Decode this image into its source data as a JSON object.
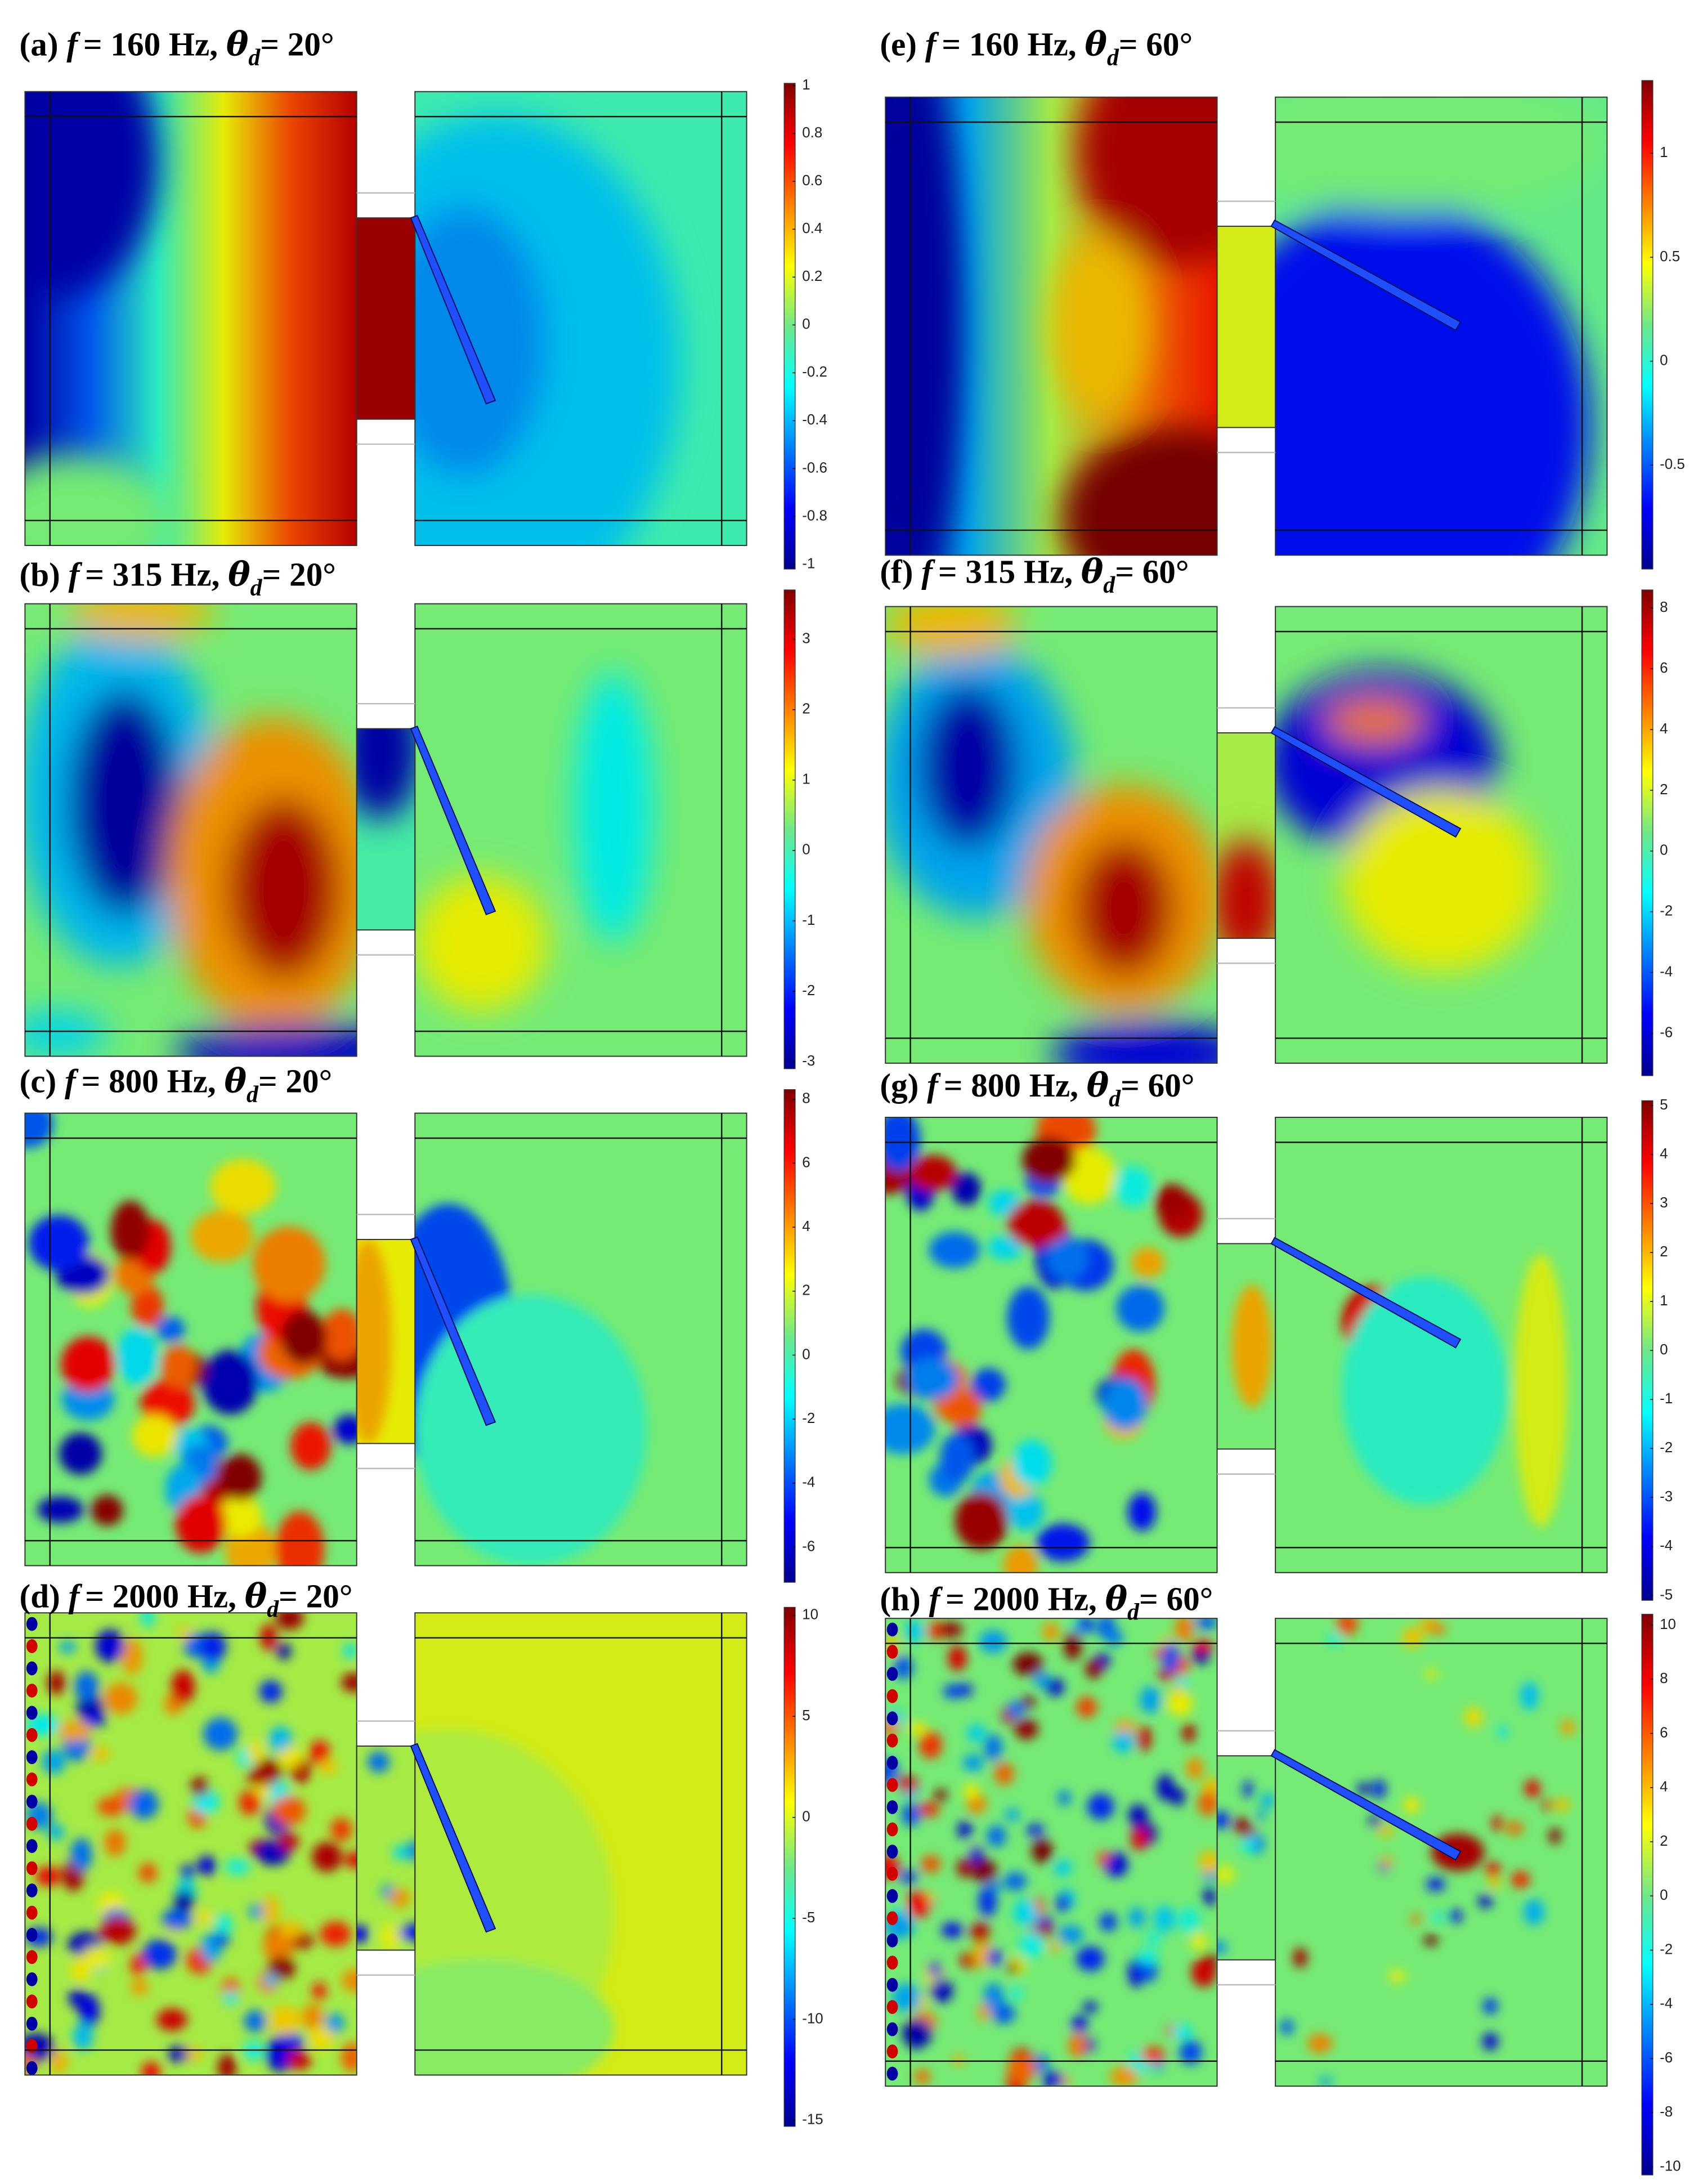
{
  "panels": [
    {
      "title": {
        "label": "(a)",
        "f": "f",
        "freq": "= 160 Hz,",
        "theta": "θ",
        "sub": "d",
        "angle": "= 20°"
      },
      "colorbar": {
        "lim": [
          -1.02,
          1.01
        ],
        "ticks": [
          1,
          0.8,
          0.6,
          0.4,
          0.2,
          0,
          -0.2,
          -0.4,
          -0.6,
          -0.8,
          -1
        ]
      }
    },
    {
      "title": {
        "label": "(b)",
        "f": "f",
        "freq": "= 315 Hz,",
        "theta": "θ",
        "sub": "d",
        "angle": "= 20°"
      },
      "colorbar": {
        "lim": [
          -3.1,
          3.7
        ],
        "ticks": [
          3,
          2,
          1,
          0,
          -1,
          -2,
          -3
        ]
      }
    },
    {
      "title": {
        "label": "(c)",
        "f": "f",
        "freq": "= 800 Hz,",
        "theta": "θ",
        "sub": "d",
        "angle": "= 20°"
      },
      "colorbar": {
        "lim": [
          -7.1,
          8.3
        ],
        "ticks": [
          8,
          6,
          4,
          2,
          0,
          -2,
          -4,
          -6
        ]
      }
    },
    {
      "title": {
        "label": "(d)",
        "f": "f",
        "freq": "= 2000 Hz,",
        "theta": "θ",
        "sub": "d",
        "angle": "= 20°"
      },
      "colorbar": {
        "lim": [
          -15.3,
          10.4
        ],
        "ticks": [
          10,
          5,
          0,
          -5,
          -10,
          -15
        ]
      }
    },
    {
      "title": {
        "label": "(e)",
        "f": "f",
        "freq": "= 160 Hz,",
        "theta": "θ",
        "sub": "d",
        "angle": "= 60°"
      },
      "colorbar": {
        "lim": [
          -1,
          1.35
        ],
        "ticks": [
          1,
          0.5,
          0,
          -0.5
        ]
      }
    },
    {
      "title": {
        "label": "(f)",
        "f": "f",
        "freq": "= 315 Hz,",
        "theta": "θ",
        "sub": "d",
        "angle": "= 60°"
      },
      "colorbar": {
        "lim": [
          -7.4,
          8.6
        ],
        "ticks": [
          8,
          6,
          4,
          2,
          0,
          -2,
          -4,
          -6
        ]
      }
    },
    {
      "title": {
        "label": "(g)",
        "f": "f",
        "freq": "= 800 Hz,",
        "theta": "θ",
        "sub": "d",
        "angle": "= 60°"
      },
      "colorbar": {
        "lim": [
          -5.1,
          5.1
        ],
        "ticks": [
          5,
          4,
          3,
          2,
          1,
          0,
          -1,
          -2,
          -3,
          -4,
          -5
        ]
      }
    },
    {
      "title": {
        "label": "(h)",
        "f": "f",
        "freq": "= 2000 Hz,",
        "theta": "θ",
        "sub": "d",
        "angle": "= 60°"
      },
      "colorbar": {
        "lim": [
          -10.3,
          10.4
        ],
        "ticks": [
          10,
          8,
          6,
          4,
          2,
          0,
          -2,
          -4,
          -6,
          -8,
          -10
        ]
      }
    }
  ]
}
